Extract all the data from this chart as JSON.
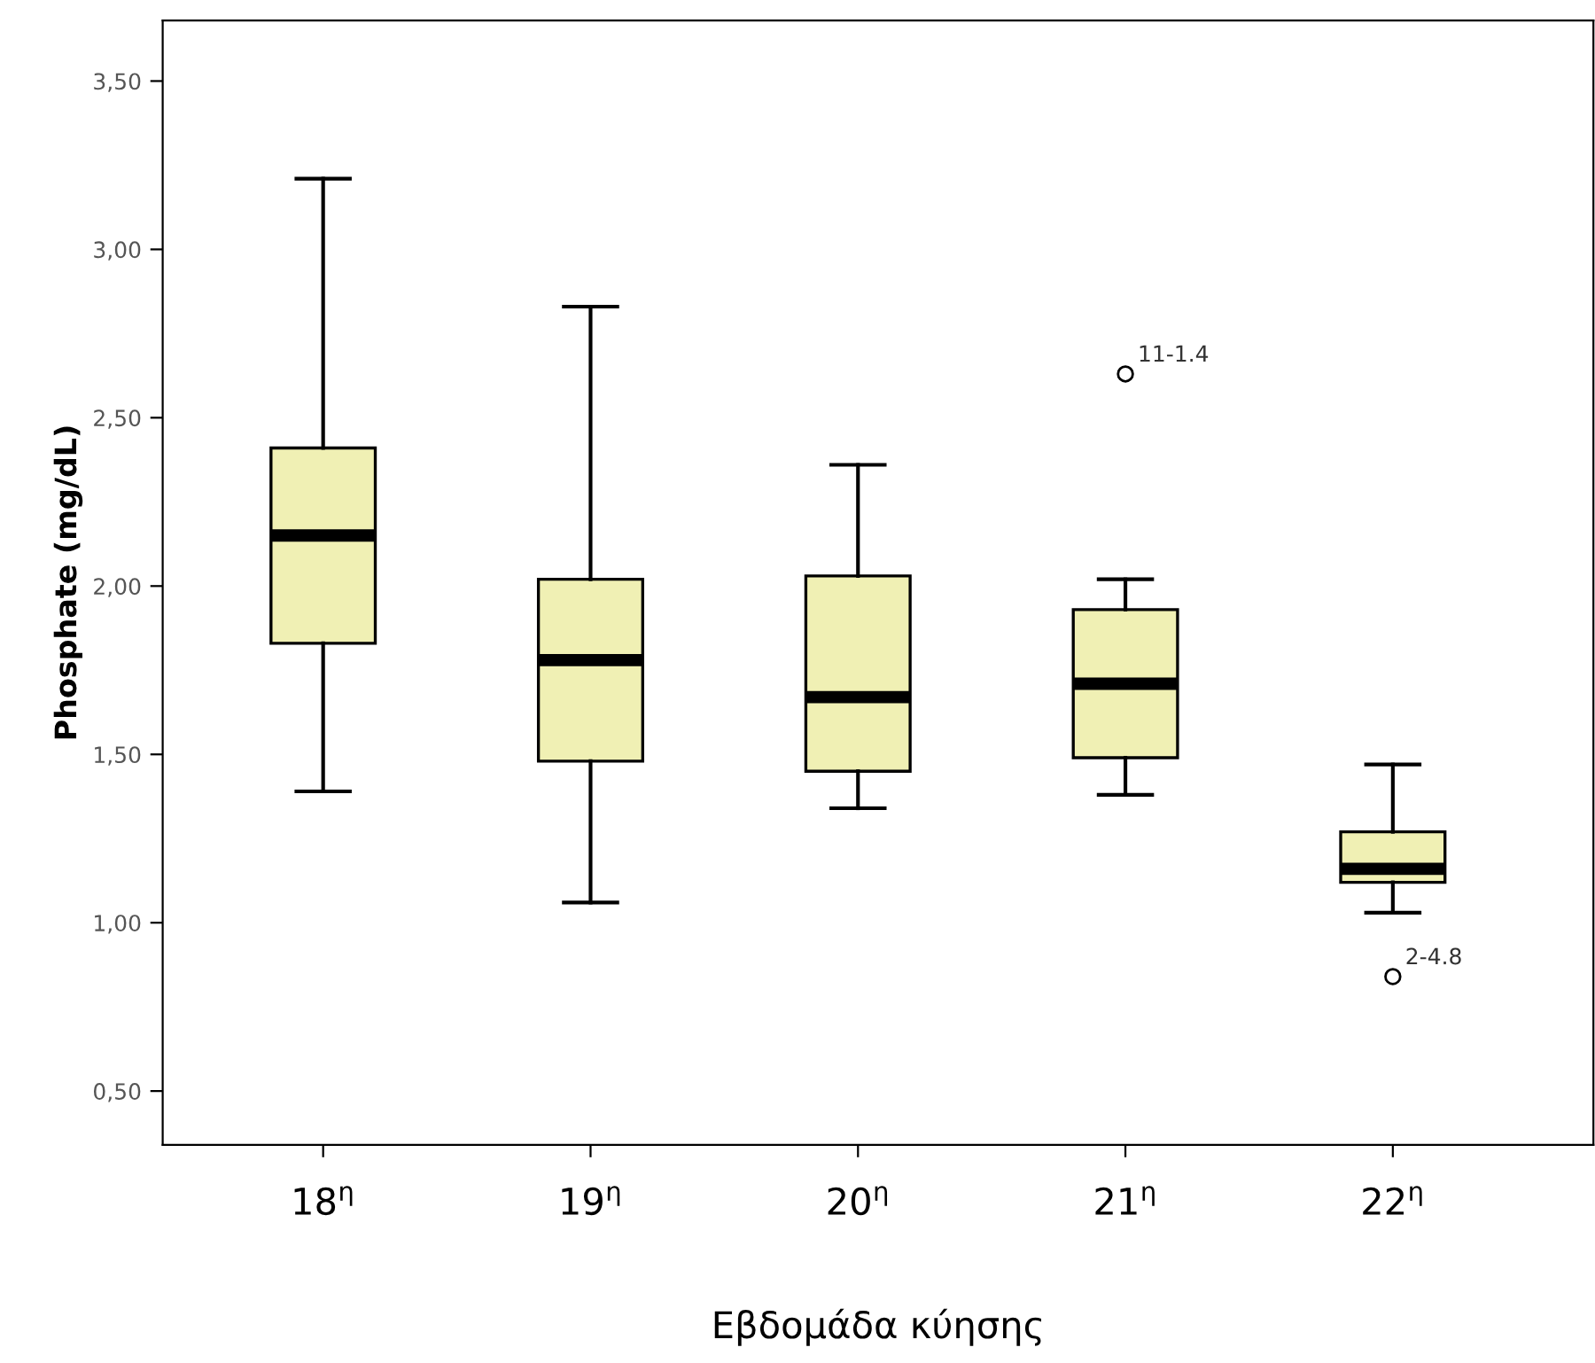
{
  "chart_data": {
    "type": "box",
    "xlabel": "Εβδομάδα κύησης",
    "ylabel": "Phosphate (mg/dL)",
    "categories": [
      "18$^{η}$",
      "19$^{η}$",
      "20$^{η}$",
      "21$^{η}$",
      "22$^{η}$"
    ],
    "color": "#f0f0b4",
    "boxes": [
      {
        "low": 1.39,
        "q1": 1.83,
        "median": 2.15,
        "q3": 2.41,
        "high": 3.21
      },
      {
        "low": 1.06,
        "q1": 1.48,
        "median": 1.78,
        "q3": 2.02,
        "high": 2.83
      },
      {
        "low": 1.34,
        "q1": 1.45,
        "median": 1.67,
        "q3": 2.03,
        "high": 2.36
      },
      {
        "low": 1.38,
        "q1": 1.49,
        "median": 1.71,
        "q3": 1.93,
        "high": 2.02,
        "outliers": [
          2.63
        ]
      },
      {
        "low": 1.03,
        "q1": 1.12,
        "median": 1.16,
        "q3": 1.27,
        "high": 1.47,
        "outliers": [
          0.84
        ]
      }
    ],
    "annotations": [
      "11-1.4",
      "2-4.8"
    ],
    "ylim": [
      0.34,
      3.68
    ],
    "yticks": [
      {
        "value": 0.5,
        "label": "0,50"
      },
      {
        "value": 1.0,
        "label": "1,00"
      },
      {
        "value": 1.5,
        "label": "1,50"
      },
      {
        "value": 2.0,
        "label": "2,00"
      },
      {
        "value": 2.5,
        "label": "2,50"
      },
      {
        "value": 3.0,
        "label": "3,00"
      },
      {
        "value": 3.5,
        "label": "3,50"
      }
    ],
    "grid": false,
    "legend": false
  }
}
